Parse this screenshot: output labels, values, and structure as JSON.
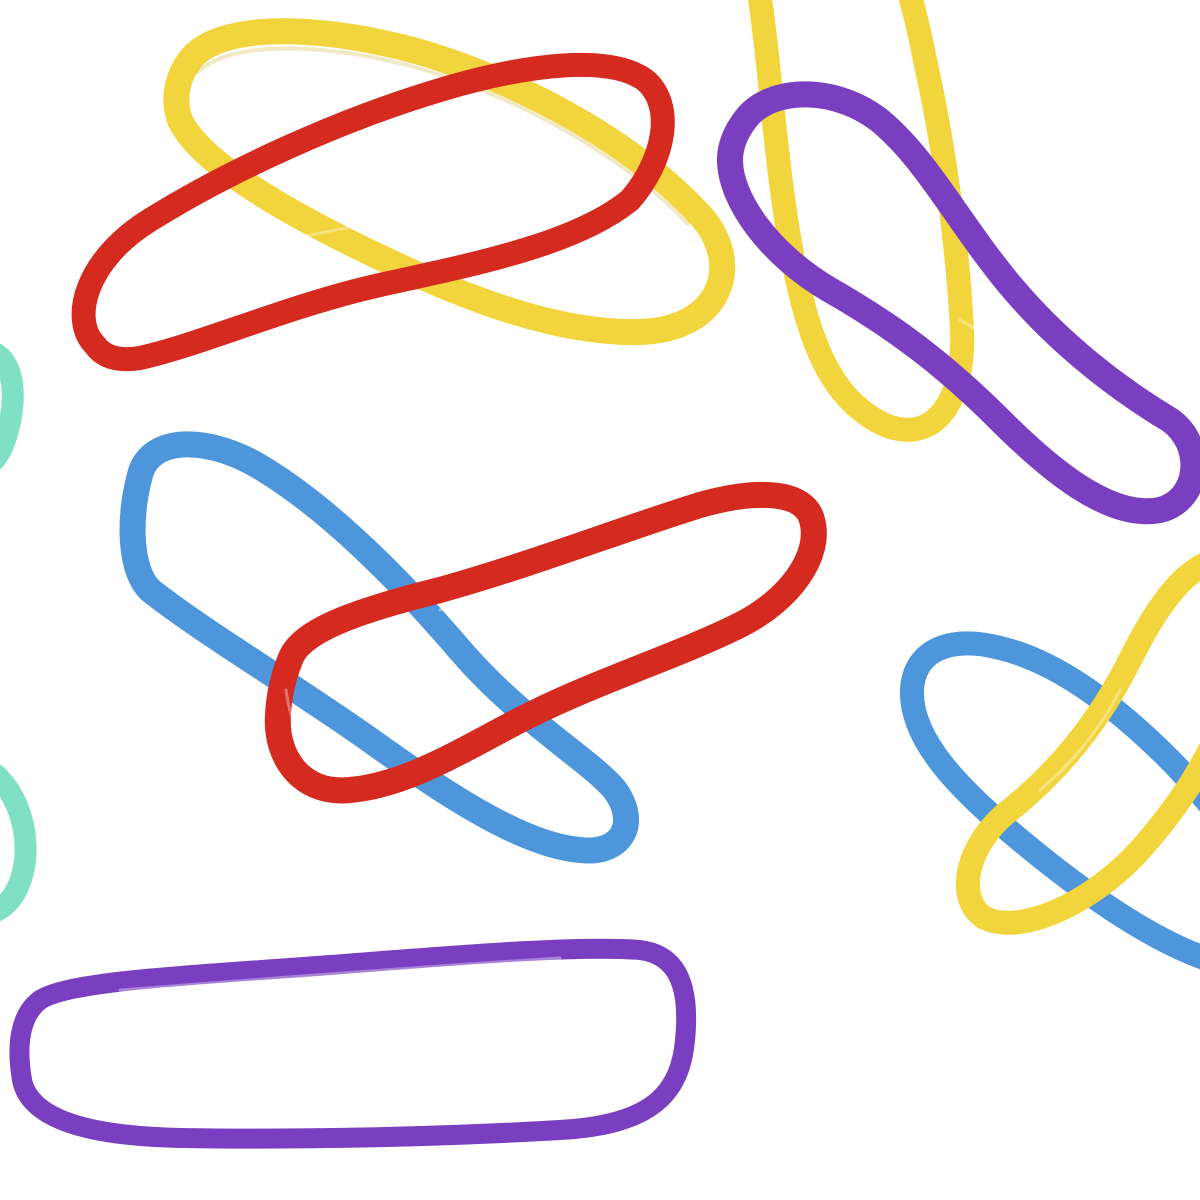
{
  "scene": {
    "background": "#ffffff",
    "subject": "rubber-bands",
    "colors": {
      "red": "#d42a1f",
      "red_shade": "#9e1b12",
      "yellow": "#f2d43c",
      "yellow_shade": "#c9a81c",
      "blue": "#4d96dc",
      "blue_shade": "#2f6fb0",
      "purple": "#7a3fc0",
      "purple_shade": "#54258f",
      "teal": "#7fe0c4",
      "teal_shade": "#4fb99b"
    }
  }
}
